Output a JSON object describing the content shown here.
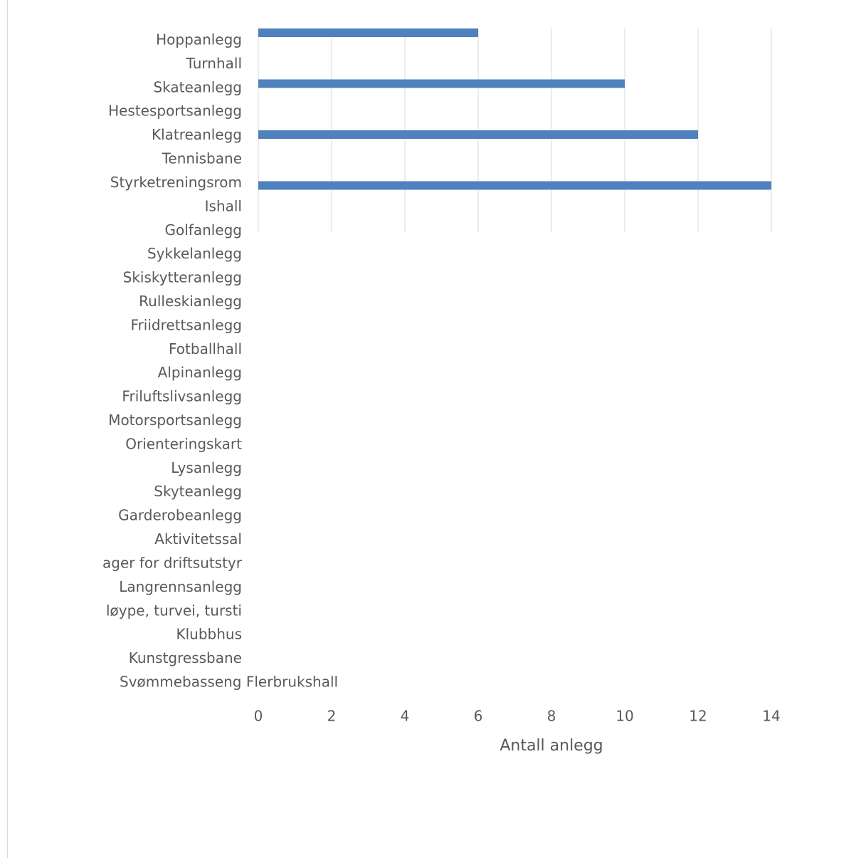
{
  "chart_data": {
    "type": "bar",
    "orientation": "horizontal",
    "x_axis_title": "Antall anlegg",
    "categories": [
      "Hoppanlegg",
      "Turnhall",
      "Skateanlegg",
      "Hestesportsanlegg",
      "Klatreanlegg",
      "Tennisbane",
      "Styrketreningsrom",
      "Ishall",
      "Golfanlegg",
      "Sykkelanlegg",
      "Skiskytteranlegg",
      "Rulleskianlegg",
      "Friidrettsanlegg",
      "Fotballhall",
      "Alpinanlegg",
      "Friluftslivsanlegg",
      "Motorsportsanlegg",
      "Orienteringskart",
      "Lysanlegg",
      "Skyteanlegg",
      "Garderobeanlegg",
      "Aktivitetssal",
      "ager for driftsutstyr",
      "Langrennsanlegg",
      "løype, turvei, tursti",
      "Klubbhus",
      "Kunstgressbane",
      "Svømmebasseng Flerbrukshall"
    ],
    "values": [
      6,
      null,
      10,
      null,
      12,
      null,
      14,
      null,
      null,
      null,
      null,
      null,
      null,
      null,
      null,
      null,
      null,
      null,
      null,
      null,
      null,
      null,
      null,
      null,
      null,
      null,
      null,
      null
    ],
    "color": "#4f81bd",
    "xlim": [
      0,
      14
    ],
    "xticks": [
      0,
      2,
      4,
      6,
      8,
      10,
      12,
      14
    ],
    "grid": true
  }
}
